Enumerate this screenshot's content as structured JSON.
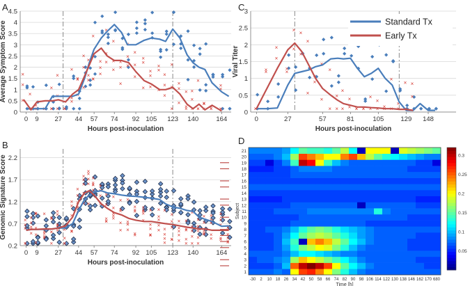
{
  "chart_data": [
    {
      "panel": "A",
      "type": "line",
      "xlabel": "Hours post-inoculation",
      "ylabel": "Average Symptom Score",
      "xticks": [
        "0",
        "9",
        "27",
        "44",
        "57",
        "74",
        "92",
        "105",
        "123",
        "140",
        "164"
      ],
      "xlim": [
        -5,
        172
      ],
      "ylim": [
        0,
        4.5
      ],
      "yticks": [
        "0",
        "0.5",
        "1",
        "1.5",
        "2",
        "2.5",
        "3",
        "3.5",
        "4",
        "4.5"
      ],
      "vlines": [
        31,
        123
      ],
      "series": [
        {
          "name": "Standard Tx",
          "color": "#4a7ebb",
          "x": [
            0,
            5,
            9,
            16,
            22,
            27,
            33,
            39,
            44,
            49,
            53,
            57,
            63,
            68,
            74,
            80,
            85,
            92,
            99,
            105,
            112,
            117,
            123,
            129,
            135,
            140,
            145,
            150,
            156,
            164,
            170
          ],
          "values": [
            0.15,
            0.15,
            0.15,
            0.15,
            0.7,
            0.7,
            0.7,
            0.7,
            0.8,
            1.5,
            2.2,
            2.8,
            3.3,
            3.6,
            3.9,
            3.55,
            3.0,
            3.0,
            3.2,
            3.3,
            3.25,
            3.15,
            3.7,
            3.3,
            2.55,
            2.2,
            2.0,
            1.9,
            1.3,
            0.9,
            0.7
          ]
        },
        {
          "name": "Early Tx",
          "color": "#c0504d",
          "x": [
            -2,
            4,
            9,
            16,
            22,
            27,
            33,
            39,
            44,
            49,
            53,
            57,
            63,
            68,
            74,
            80,
            86,
            92,
            99,
            105,
            112,
            117,
            123,
            129,
            135,
            140,
            145,
            150,
            156,
            164
          ],
          "values": [
            0.55,
            0.1,
            0.45,
            0.5,
            0.5,
            0.55,
            0.45,
            0.8,
            1.0,
            1.6,
            2.1,
            2.6,
            2.85,
            2.5,
            2.3,
            2.3,
            2.2,
            1.8,
            1.4,
            1.25,
            1.0,
            1.0,
            1.1,
            0.8,
            0.35,
            0.15,
            0.35,
            0.1,
            0.3,
            0.05
          ]
        }
      ]
    },
    {
      "panel": "B",
      "type": "line",
      "xlabel": "Hours post-inoculation",
      "ylabel": "Genomic Signature Score",
      "xticks": [
        "0",
        "9",
        "27",
        "44",
        "57",
        "74",
        "92",
        "105",
        "123",
        "140",
        "164"
      ],
      "xlim": [
        -5,
        172
      ],
      "ylim": [
        0.2,
        2.4
      ],
      "yticks": [
        "0.2",
        "0.7",
        "1.2",
        "1.7",
        "2.2"
      ],
      "vlines": [
        31,
        123
      ],
      "series": [
        {
          "name": "Standard Tx",
          "color": "#4a7ebb",
          "x": [
            0,
            5,
            9,
            16,
            22,
            27,
            33,
            39,
            44,
            49,
            53,
            57,
            63,
            68,
            74,
            80,
            86,
            92,
            99,
            105,
            112,
            117,
            123,
            129,
            135,
            140,
            145,
            150,
            156,
            164,
            170
          ],
          "values": [
            0.55,
            0.57,
            0.57,
            0.57,
            0.58,
            0.6,
            0.6,
            0.7,
            1.0,
            1.25,
            1.35,
            1.42,
            1.45,
            1.4,
            1.38,
            1.35,
            1.33,
            1.32,
            1.3,
            1.28,
            1.25,
            1.15,
            1.08,
            1.05,
            1.0,
            0.98,
            0.85,
            0.8,
            0.75,
            0.64,
            0.65
          ]
        },
        {
          "name": "Early Tx",
          "color": "#c0504d",
          "x": [
            0,
            5,
            9,
            16,
            22,
            27,
            33,
            39,
            44,
            49,
            53,
            57,
            63,
            68,
            74,
            80,
            86,
            92,
            99,
            105,
            112,
            117,
            123,
            129,
            135,
            140,
            145,
            150,
            156,
            164,
            170
          ],
          "values": [
            0.55,
            0.57,
            0.57,
            0.58,
            0.58,
            0.6,
            0.65,
            0.85,
            1.2,
            1.4,
            1.45,
            1.35,
            1.15,
            1.05,
            0.95,
            0.9,
            0.82,
            0.78,
            0.75,
            0.75,
            0.72,
            0.7,
            0.68,
            0.65,
            0.62,
            0.6,
            0.58,
            0.58,
            0.55,
            0.55,
            0.55
          ]
        }
      ]
    },
    {
      "panel": "C",
      "type": "line",
      "xlabel": "Hours post-inoculation",
      "ylabel": "Viral Titer",
      "xticks": [
        "0",
        "27",
        "57",
        "81",
        "105",
        "129",
        "148"
      ],
      "xlim": [
        -5,
        172
      ],
      "ylim": [
        0,
        3
      ],
      "yticks": [
        "0",
        "0.5",
        "1",
        "1.5",
        "2",
        "2.5",
        "3"
      ],
      "vlines": [
        33,
        123
      ],
      "legend": [
        "Standard Tx",
        "Early Tx"
      ],
      "series": [
        {
          "name": "Standard Tx",
          "color": "#4a7ebb",
          "x": [
            0,
            9,
            18,
            27,
            33,
            39,
            45,
            51,
            57,
            64,
            70,
            75,
            81,
            87,
            93,
            99,
            105,
            111,
            117,
            123,
            129,
            135,
            141,
            148,
            154
          ],
          "values": [
            0.1,
            0.1,
            0.12,
            0.8,
            1.15,
            1.2,
            1.25,
            1.35,
            1.4,
            1.58,
            1.6,
            1.58,
            1.6,
            1.3,
            1.05,
            1.15,
            1.3,
            1.0,
            0.8,
            0.3,
            0.05,
            0.05,
            0.25,
            0.05,
            0.05
          ]
        },
        {
          "name": "Early Tx",
          "color": "#c0504d",
          "x": [
            0,
            9,
            18,
            27,
            33,
            39,
            45,
            51,
            57,
            64,
            70,
            75,
            81,
            87,
            93,
            99,
            105,
            111,
            117,
            123,
            129,
            135
          ],
          "values": [
            0.1,
            0.7,
            1.3,
            1.85,
            2.05,
            1.8,
            1.4,
            1.0,
            0.7,
            0.5,
            0.35,
            0.25,
            0.2,
            0.15,
            0.15,
            0.13,
            0.12,
            0.1,
            0.1,
            0.08,
            0.08,
            0.05
          ]
        }
      ]
    },
    {
      "panel": "D",
      "type": "heatmap",
      "xlabel": "Time [h]",
      "ylabel": "Subject",
      "x_ticks": [
        "-30",
        "2",
        "10",
        "18",
        "26",
        "34",
        "42",
        "50",
        "58",
        "66",
        "74",
        "82",
        "90",
        "98",
        "106",
        "114",
        "122",
        "130",
        "138",
        "146",
        "162",
        "170",
        "680"
      ],
      "y_ticks": [
        "1",
        "2",
        "3",
        "4",
        "5",
        "6",
        "7",
        "8",
        "9",
        "10",
        "11",
        "12",
        "13",
        "14",
        "15",
        "16",
        "17",
        "18",
        "19",
        "20",
        "21"
      ],
      "colorbar_ticks": [
        "0.05",
        "0.1",
        "0.15",
        "0.2",
        "0.25",
        "0.3"
      ],
      "colorbar_range": [
        0,
        0.32
      ],
      "marked_subjects": [
        2,
        3,
        5,
        6,
        7,
        8,
        10,
        12,
        13,
        15,
        16,
        18,
        19
      ],
      "matrix": [
        [
          0.07,
          0.07,
          0.07,
          0.08,
          0.07,
          0.2,
          0.26,
          0.27,
          0.24,
          0.2,
          0.16,
          0.13,
          0.1,
          0.08,
          0.07,
          0.07,
          0.07,
          0.07,
          0.07,
          0.07,
          0.07,
          0.07,
          0.07
        ],
        [
          0.06,
          0.06,
          0.06,
          0.07,
          0.1,
          0.25,
          0.3,
          0.32,
          0.3,
          0.26,
          0.2,
          0.15,
          0.12,
          0.1,
          0.08,
          0.07,
          0.07,
          0.07,
          0.07,
          0.07,
          0.07,
          0.06,
          0.06
        ],
        [
          0.06,
          0.07,
          0.07,
          0.08,
          0.09,
          0.17,
          0.22,
          0.2,
          0.18,
          0.16,
          0.14,
          0.12,
          0.1,
          0.08,
          0.07,
          0.07,
          0.07,
          0.07,
          0.07,
          0.07,
          0.06,
          0.06,
          0.06
        ],
        [
          0.07,
          0.07,
          0.07,
          0.07,
          0.08,
          0.1,
          0.12,
          0.12,
          0.11,
          0.1,
          0.09,
          0.08,
          0.08,
          0.07,
          0.07,
          0.07,
          0.07,
          0.07,
          0.07,
          0.07,
          0.07,
          0.07,
          0.07
        ],
        [
          0.06,
          0.06,
          0.06,
          0.07,
          0.09,
          0.13,
          0.16,
          0.18,
          0.2,
          0.19,
          0.16,
          0.13,
          0.1,
          0.08,
          0.07,
          0.07,
          0.07,
          0.07,
          0.07,
          0.06,
          0.06,
          0.06,
          0.06
        ],
        [
          0.06,
          0.06,
          0.06,
          0.07,
          0.1,
          0.14,
          0.02,
          0.22,
          0.24,
          0.22,
          0.18,
          0.15,
          0.12,
          0.1,
          0.08,
          0.07,
          0.07,
          0.07,
          0.07,
          0.06,
          0.06,
          0.06,
          0.06
        ],
        [
          0.06,
          0.06,
          0.06,
          0.07,
          0.09,
          0.12,
          0.15,
          0.17,
          0.18,
          0.17,
          0.15,
          0.13,
          0.11,
          0.09,
          0.08,
          0.07,
          0.07,
          0.07,
          0.07,
          0.07,
          0.06,
          0.06,
          0.06
        ],
        [
          0.06,
          0.06,
          0.07,
          0.07,
          0.08,
          0.1,
          0.13,
          0.15,
          0.16,
          0.15,
          0.13,
          0.11,
          0.1,
          0.09,
          0.08,
          0.07,
          0.07,
          0.07,
          0.07,
          0.07,
          0.07,
          0.07,
          0.07
        ],
        [
          0.06,
          0.06,
          0.06,
          0.06,
          0.06,
          0.07,
          0.07,
          0.07,
          0.07,
          0.07,
          0.07,
          0.07,
          0.07,
          0.07,
          0.06,
          0.06,
          0.06,
          0.06,
          0.06,
          0.06,
          0.06,
          0.06,
          0.06
        ],
        [
          0.06,
          0.06,
          0.06,
          0.06,
          0.06,
          0.06,
          0.07,
          0.07,
          0.07,
          0.07,
          0.07,
          0.07,
          0.07,
          0.07,
          0.07,
          0.07,
          0.07,
          0.07,
          0.07,
          0.06,
          0.06,
          0.06,
          0.06
        ],
        [
          0.06,
          0.06,
          0.06,
          0.07,
          0.07,
          0.07,
          0.07,
          0.08,
          0.08,
          0.08,
          0.08,
          0.08,
          0.08,
          0.08,
          0.08,
          0.13,
          0.08,
          0.07,
          0.07,
          0.07,
          0.07,
          0.07,
          0.07
        ],
        [
          0.06,
          0.06,
          0.06,
          0.06,
          0.06,
          0.07,
          0.07,
          0.07,
          0.07,
          0.07,
          0.07,
          0.07,
          0.07,
          0.02,
          0.07,
          0.07,
          0.07,
          0.07,
          0.07,
          0.07,
          0.06,
          0.06,
          0.06
        ],
        [
          0.05,
          0.05,
          0.05,
          0.05,
          0.06,
          0.06,
          0.06,
          0.06,
          0.06,
          0.06,
          0.06,
          0.06,
          0.06,
          0.06,
          0.06,
          0.06,
          0.06,
          0.06,
          0.06,
          0.06,
          0.05,
          0.05,
          0.05
        ],
        [
          0.06,
          0.06,
          0.06,
          0.06,
          0.06,
          0.06,
          0.06,
          0.06,
          0.06,
          0.06,
          0.06,
          0.06,
          0.06,
          0.06,
          0.06,
          0.06,
          0.06,
          0.06,
          0.06,
          0.06,
          0.06,
          0.06,
          0.06
        ],
        [
          0.07,
          0.07,
          0.07,
          0.07,
          0.07,
          0.07,
          0.07,
          0.07,
          0.07,
          0.07,
          0.07,
          0.07,
          0.07,
          0.07,
          0.07,
          0.07,
          0.07,
          0.07,
          0.07,
          0.07,
          0.07,
          0.07,
          0.07
        ],
        [
          0.06,
          0.06,
          0.06,
          0.06,
          0.06,
          0.06,
          0.06,
          0.06,
          0.06,
          0.06,
          0.06,
          0.06,
          0.06,
          0.06,
          0.06,
          0.06,
          0.06,
          0.06,
          0.06,
          0.06,
          0.06,
          0.06,
          0.06
        ],
        [
          0.06,
          0.06,
          0.06,
          0.06,
          0.06,
          0.07,
          0.07,
          0.07,
          0.07,
          0.07,
          0.07,
          0.07,
          0.07,
          0.07,
          0.07,
          0.07,
          0.07,
          0.07,
          0.07,
          0.07,
          0.07,
          0.07,
          0.07
        ],
        [
          0.05,
          0.05,
          0.05,
          0.06,
          0.06,
          0.07,
          0.08,
          0.08,
          0.08,
          0.08,
          0.07,
          0.07,
          0.07,
          0.07,
          0.07,
          0.07,
          0.07,
          0.07,
          0.07,
          0.06,
          0.06,
          0.06,
          0.06
        ],
        [
          0.06,
          0.06,
          0.03,
          0.06,
          0.08,
          0.14,
          0.3,
          0.28,
          0.2,
          0.14,
          0.1,
          0.08,
          0.07,
          0.07,
          0.07,
          0.07,
          0.07,
          0.07,
          0.07,
          0.07,
          0.06,
          0.06,
          0.03
        ],
        [
          0.07,
          0.07,
          0.07,
          0.08,
          0.1,
          0.17,
          0.26,
          0.24,
          0.22,
          0.2,
          0.2,
          0.24,
          0.26,
          0.22,
          0.18,
          0.15,
          0.13,
          0.12,
          0.11,
          0.1,
          0.09,
          0.08,
          0.08
        ],
        [
          0.08,
          0.08,
          0.08,
          0.08,
          0.09,
          0.12,
          0.15,
          0.14,
          0.14,
          0.13,
          0.15,
          0.18,
          0.12,
          0.02,
          0.2,
          0.2,
          0.2,
          0.02,
          0.19,
          0.18,
          0.17,
          0.16,
          0.15
        ]
      ]
    }
  ],
  "panels": {
    "a": "A",
    "b": "B",
    "c": "C",
    "d": "D"
  }
}
